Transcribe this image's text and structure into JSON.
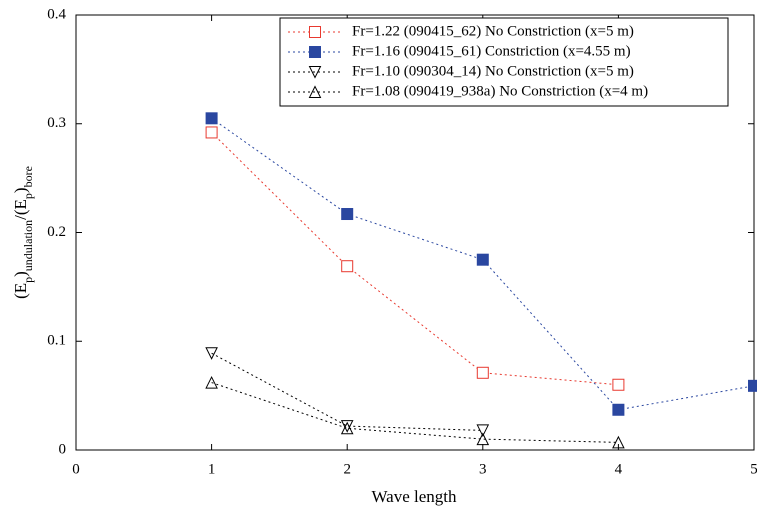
{
  "chart_data": {
    "type": "line",
    "xlabel": "Wave length",
    "ylabel_parts": [
      "(E",
      "p",
      ")",
      "undulation",
      "/(E",
      "p",
      ")",
      "bore"
    ],
    "xlim": [
      0,
      5
    ],
    "xticks": [
      0,
      1,
      2,
      3,
      4,
      5
    ],
    "ylim": [
      0,
      0.4
    ],
    "yticks": [
      0,
      0.1,
      0.2,
      0.3,
      0.4
    ],
    "legend": "upper right",
    "series": [
      {
        "name": "Fr=1.22 (090415_62) No Constriction (x=5 m)",
        "color": "#e8392f",
        "marker": "square-open",
        "x": [
          1,
          2,
          3,
          4
        ],
        "values": [
          0.292,
          0.169,
          0.071,
          0.06
        ]
      },
      {
        "name": "Fr=1.16 (090415_61) Constriction (x=4.55 m)",
        "color": "#2a47a0",
        "marker": "square",
        "x": [
          1,
          2,
          3,
          4,
          5
        ],
        "values": [
          0.305,
          0.217,
          0.175,
          0.037,
          0.059
        ]
      },
      {
        "name": "Fr=1.10 (090304_14) No Constriction (x=5 m)",
        "color": "#000000",
        "marker": "triangle-down",
        "x": [
          1,
          2,
          3
        ],
        "values": [
          0.089,
          0.022,
          0.018
        ]
      },
      {
        "name": "Fr=1.08 (090419_938a) No Constriction (x=4 m)",
        "color": "#000000",
        "marker": "triangle-up",
        "x": [
          1,
          2,
          3,
          4
        ],
        "values": [
          0.062,
          0.02,
          0.01,
          0.007
        ]
      }
    ]
  }
}
